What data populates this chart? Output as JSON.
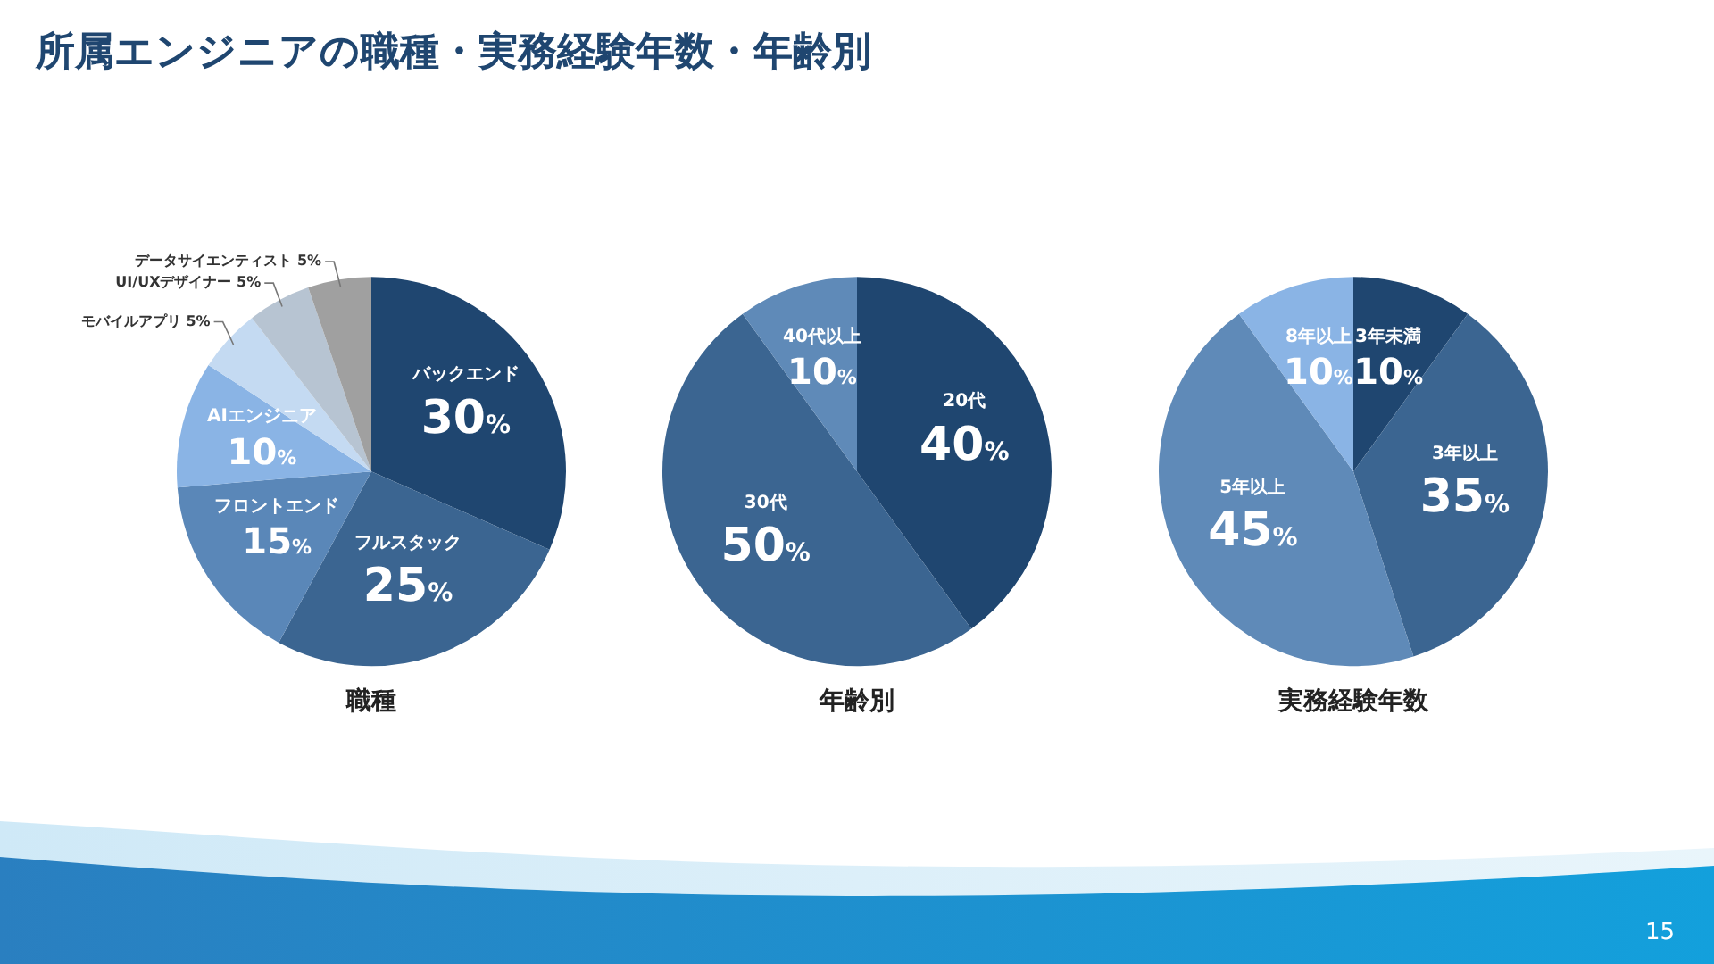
{
  "chart_data": [
    {
      "type": "other",
      "title": "所属エンジニアの職種・実務経験年数・年齢別",
      "annotations": [
        "15"
      ]
    },
    {
      "type": "pie",
      "title": "職種",
      "categories": [
        "バックエンド",
        "フルスタック",
        "フロントエンド",
        "AIエンジニア",
        "モバイルアプリ",
        "UI/UXデザイナー",
        "データサイエンティスト"
      ],
      "values": [
        30,
        25,
        15,
        10,
        5,
        5,
        5
      ],
      "colors": [
        "#1f4670",
        "#3b6591",
        "#5a87b8",
        "#8ab4e5",
        "#c4daf2",
        "#b7c4d2",
        "#a0a0a0"
      ],
      "value_labels": [
        "30%",
        "25%",
        "15%",
        "10%",
        "5%",
        "5%",
        "5%"
      ]
    },
    {
      "type": "pie",
      "title": "年齢別",
      "categories": [
        "20代",
        "30代",
        "40代以上"
      ],
      "values": [
        40,
        50,
        10
      ],
      "colors": [
        "#1f4670",
        "#3b6591",
        "#5f8ab8"
      ],
      "value_labels": [
        "40%",
        "50%",
        "10%"
      ]
    },
    {
      "type": "pie",
      "title": "実務経験年数",
      "categories": [
        "3年未満",
        "3年以上",
        "5年以上",
        "8年以上"
      ],
      "values": [
        10,
        35,
        45,
        10
      ],
      "colors": [
        "#1f4670",
        "#3b6591",
        "#5f8ab8",
        "#8ab4e5"
      ],
      "value_labels": [
        "10%",
        "35%",
        "45%",
        "10%"
      ]
    }
  ]
}
